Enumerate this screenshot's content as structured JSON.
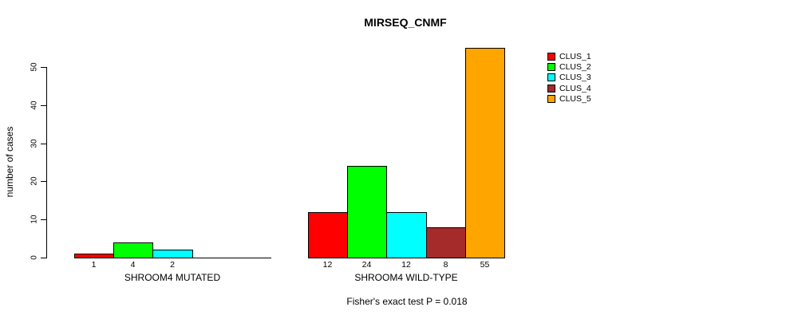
{
  "chart_data": {
    "type": "bar",
    "title": "MIRSEQ_CNMF",
    "ylabel": "number of cases",
    "xlabel": "",
    "categories": [
      "SHROOM4 MUTATED",
      "SHROOM4 WILD-TYPE"
    ],
    "series": [
      {
        "name": "CLUS_1",
        "color": "#FF0000",
        "values": [
          1,
          12
        ]
      },
      {
        "name": "CLUS_2",
        "color": "#00FF00",
        "values": [
          4,
          24
        ]
      },
      {
        "name": "CLUS_3",
        "color": "#00FFFF",
        "values": [
          2,
          12
        ]
      },
      {
        "name": "CLUS_4",
        "color": "#A52A2A",
        "values": [
          0,
          8
        ]
      },
      {
        "name": "CLUS_5",
        "color": "#FFA500",
        "values": [
          0,
          55
        ]
      }
    ],
    "bar_value_labels": [
      [
        "1",
        "4",
        "2",
        "",
        ""
      ],
      [
        "12",
        "24",
        "12",
        "8",
        "55"
      ]
    ],
    "yticks": [
      0,
      10,
      20,
      30,
      40,
      50
    ],
    "ylim": [
      0,
      55
    ],
    "grid": false,
    "legend_position": "top-right",
    "legend_items": [
      "CLUS_1",
      "CLUS_2",
      "CLUS_3",
      "CLUS_4",
      "CLUS_5"
    ],
    "annotation": "Fisher's exact test P = 0.018"
  },
  "colors": {
    "background": "#FFFFFF",
    "axis": "#000000",
    "bar_border": "#000000",
    "text": "#000000"
  }
}
